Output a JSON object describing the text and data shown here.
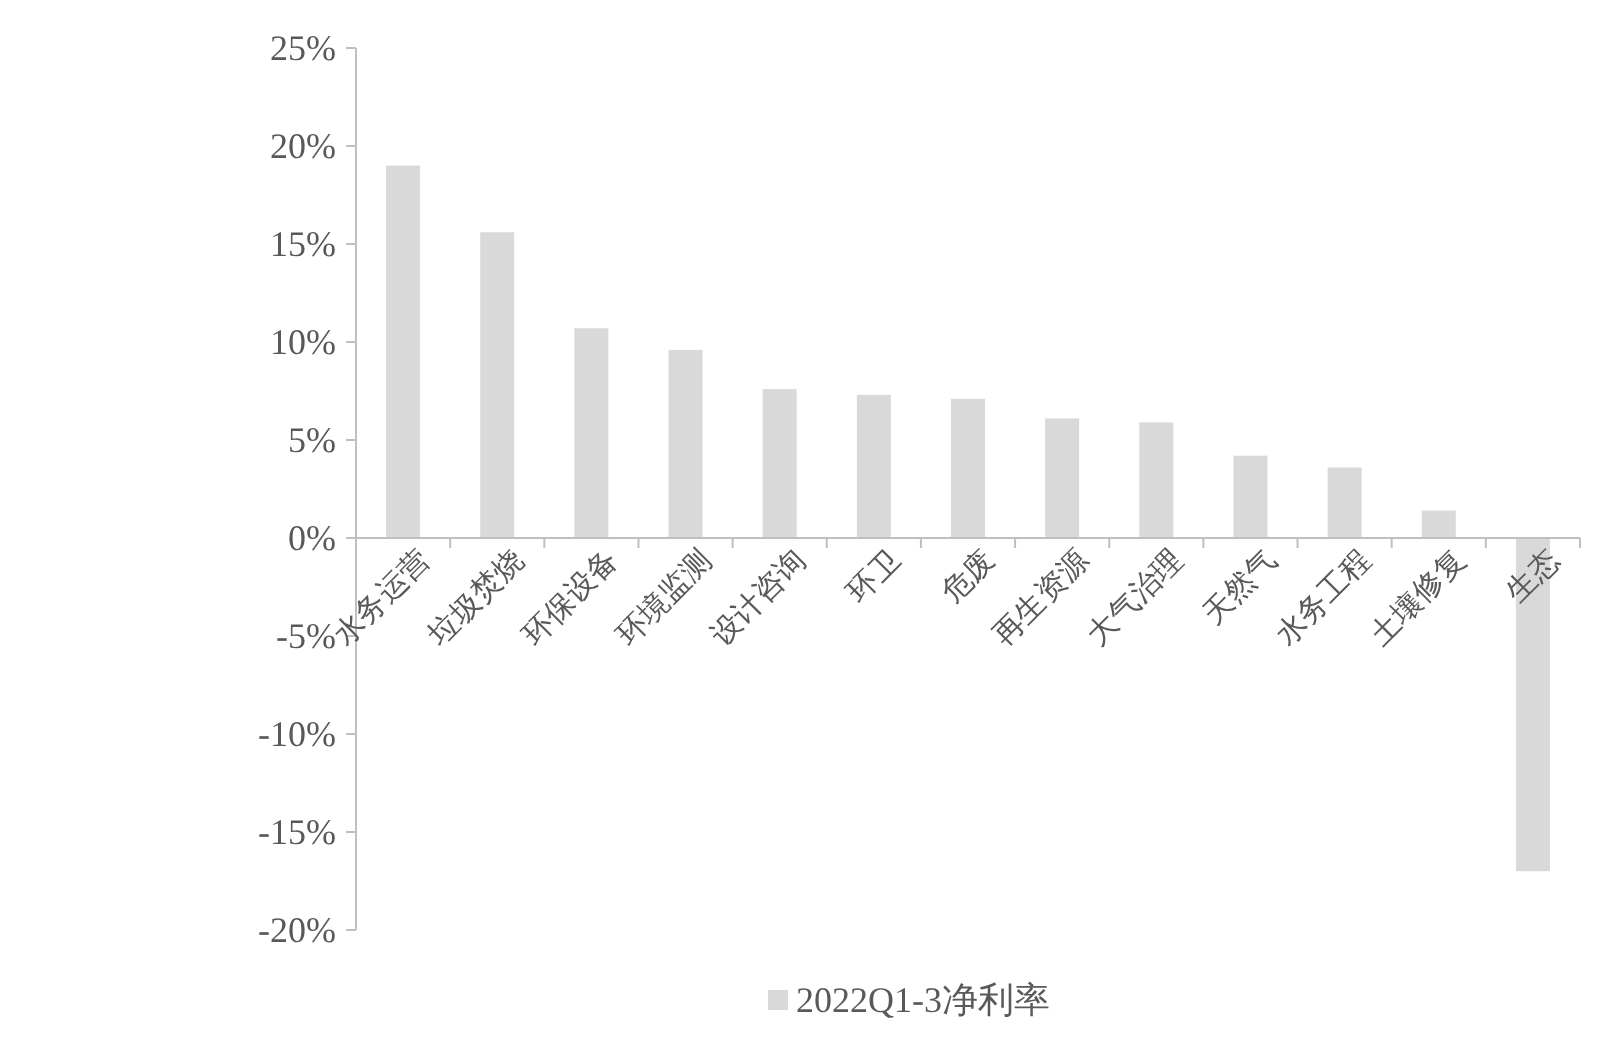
{
  "chart_data": {
    "type": "bar",
    "categories": [
      "水务运营",
      "垃圾焚烧",
      "环保设备",
      "环境监测",
      "设计咨询",
      "环卫",
      "危废",
      "再生资源",
      "大气治理",
      "天然气",
      "水务工程",
      "土壤修复",
      "生态"
    ],
    "series": [
      {
        "name": "2022Q1-3净利率",
        "color": "#d9d9d9",
        "values": [
          19.0,
          15.6,
          10.7,
          9.6,
          7.6,
          7.3,
          7.1,
          6.1,
          5.9,
          4.2,
          3.6,
          1.4,
          -17.0
        ]
      }
    ],
    "ylim": [
      -20,
      25
    ],
    "yticks": [
      {
        "value": -20,
        "label": "-20%"
      },
      {
        "value": -15,
        "label": "-15%"
      },
      {
        "value": -10,
        "label": "-10%"
      },
      {
        "value": -5,
        "label": "-5%"
      },
      {
        "value": 0,
        "label": "0%"
      },
      {
        "value": 5,
        "label": "5%"
      },
      {
        "value": 10,
        "label": "10%"
      },
      {
        "value": 15,
        "label": "15%"
      },
      {
        "value": 20,
        "label": "20%"
      },
      {
        "value": 25,
        "label": "25%"
      }
    ],
    "legend": "bottom",
    "grid": false
  }
}
